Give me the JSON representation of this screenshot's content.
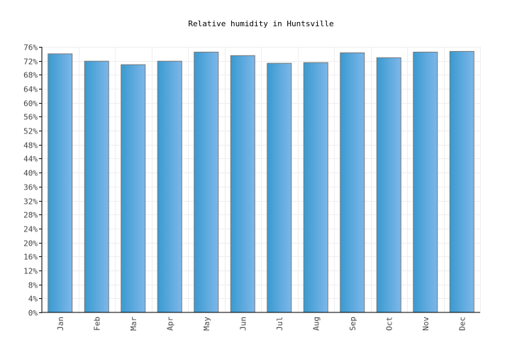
{
  "chart_data": {
    "type": "bar",
    "title": "Relative humidity in Huntsville",
    "xlabel": "",
    "ylabel": "",
    "categories": [
      "Jan",
      "Feb",
      "Mar",
      "Apr",
      "May",
      "Jun",
      "Jul",
      "Aug",
      "Sep",
      "Oct",
      "Nov",
      "Dec"
    ],
    "values": [
      74.0,
      71.9,
      70.9,
      71.9,
      74.5,
      73.5,
      71.3,
      71.5,
      74.3,
      72.9,
      74.5,
      74.7
    ],
    "unit": "%",
    "ylim": [
      0,
      76
    ],
    "ytick_step": 4,
    "grid": true,
    "colors": {
      "bar_left": "#3a9ad0",
      "bar_right": "#7db7ea",
      "bar_border": "#777777",
      "grid": "#eeeeee"
    }
  }
}
